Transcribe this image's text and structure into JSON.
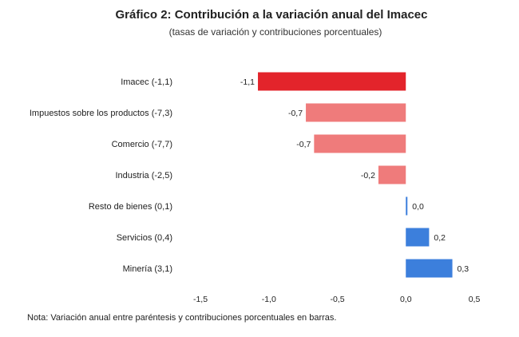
{
  "chart_data": {
    "type": "bar",
    "orientation": "horizontal",
    "title": "Gráfico 2: Contribución a la variación anual del Imacec",
    "subtitle": "(tasas de variación y contribuciones porcentuales)",
    "categories": [
      "Imacec (-1,1)",
      "Impuestos sobre los productos (-7,3)",
      "Comercio (-7,7)",
      "Industria (-2,5)",
      "Resto de bienes (0,1)",
      "Servicios (0,4)",
      "Minería (3,1)"
    ],
    "values": [
      -1.08,
      -0.73,
      -0.67,
      -0.2,
      0.01,
      0.17,
      0.34
    ],
    "value_labels": [
      "-1,1",
      "-0,7",
      "-0,7",
      "-0,2",
      "0,0",
      "0,2",
      "0,3"
    ],
    "xlim": [
      -1.5,
      0.5
    ],
    "xticks": [
      -1.5,
      -1.0,
      -0.5,
      0.0,
      0.5
    ],
    "xtick_labels": [
      "-1,5",
      "-1,0",
      "-0,5",
      "0,0",
      "0,5"
    ],
    "colors": {
      "imacec": "#e3242b",
      "negative": "#ef7b7b",
      "positive": "#3c7fdc"
    },
    "note": "Nota: Variación anual entre paréntesis y contribuciones porcentuales en barras."
  }
}
